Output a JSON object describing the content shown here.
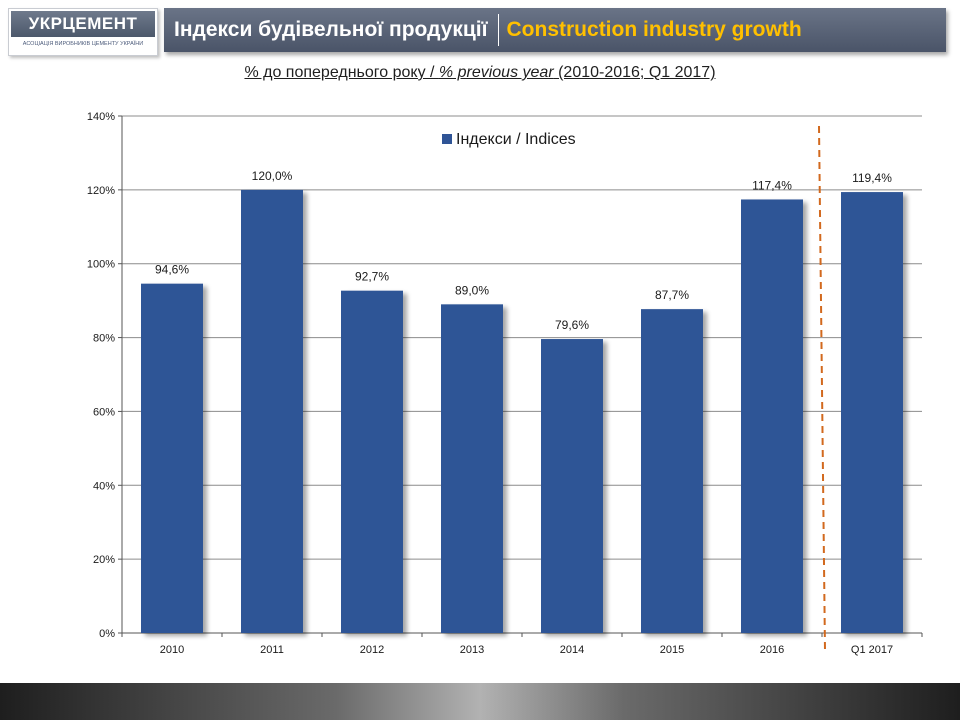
{
  "logo": {
    "name": "УКРЦЕМЕНТ",
    "subtitle": "АСОЦІАЦІЯ ВИРОБНИКІВ ЦЕМЕНТУ УКРАЇНИ"
  },
  "header": {
    "title_ua": "Індекси будівельної продукції",
    "title_en": "Construction industry growth"
  },
  "subtitle": {
    "part1": "% до попереднього року / ",
    "part2": "% previous year",
    "part3": " (2010-2016; Q1 2017)"
  },
  "colors": {
    "bar": "#2f5496",
    "divider": "#d2691e",
    "title_en": "#ffc000"
  },
  "chart_data": {
    "type": "bar",
    "categories": [
      "2010",
      "2011",
      "2012",
      "2013",
      "2014",
      "2015",
      "2016",
      "Q1 2017"
    ],
    "series": [
      {
        "name": "Індекси / Indices",
        "values": [
          94.6,
          120.0,
          92.7,
          89.0,
          79.6,
          87.7,
          117.4,
          119.4
        ],
        "labels": [
          "94,6%",
          "120,0%",
          "92,7%",
          "89,0%",
          "79,6%",
          "87,7%",
          "117,4%",
          "119,4%"
        ]
      }
    ],
    "ylim": [
      0,
      140
    ],
    "yticks": [
      0,
      20,
      40,
      60,
      80,
      100,
      120,
      140
    ],
    "ytick_labels": [
      "0%",
      "20%",
      "40%",
      "60%",
      "80%",
      "100%",
      "120%",
      "140%"
    ],
    "grid": true,
    "legend_position": "top-center",
    "divider_after": "2016"
  }
}
